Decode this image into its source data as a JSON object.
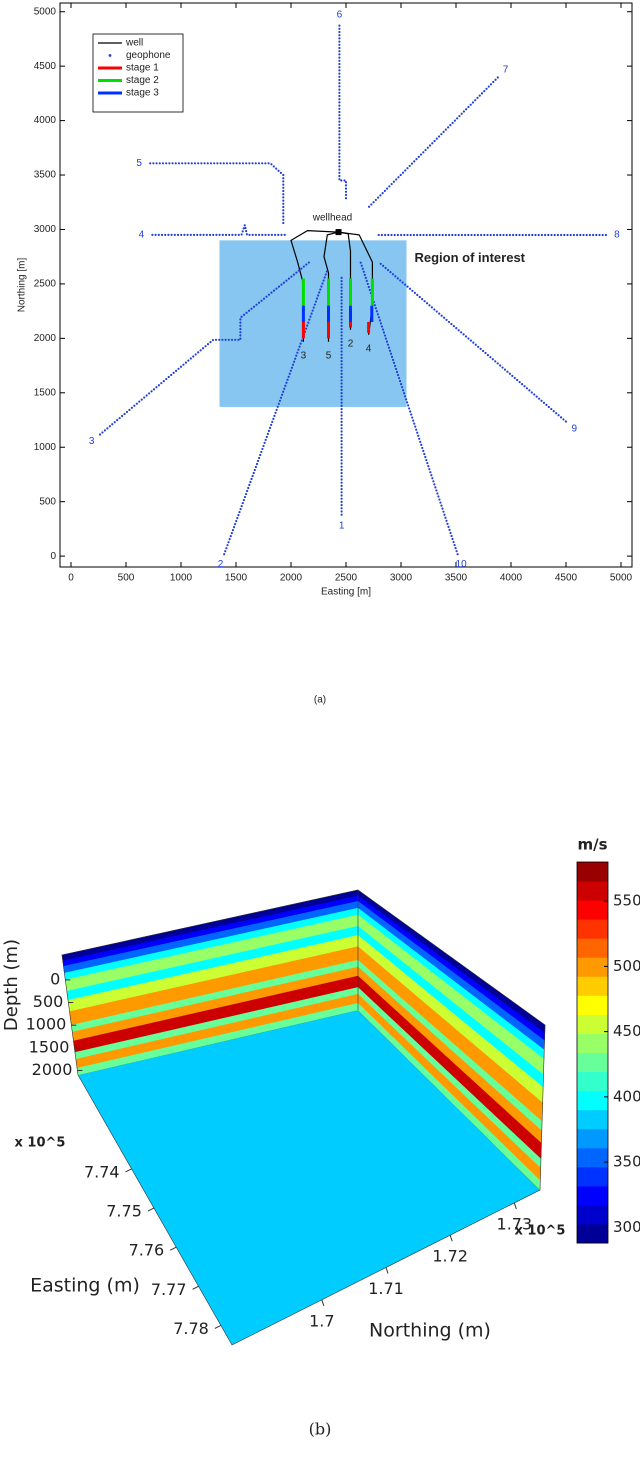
{
  "chart_data": [
    {
      "type": "map",
      "caption": "(a)",
      "xlabel": "Easting [m]",
      "ylabel": "Northing [m]",
      "xlim": [
        -100,
        5100
      ],
      "ylim": [
        -100,
        5080
      ],
      "xticks": [
        0,
        500,
        1000,
        1500,
        2000,
        2500,
        3000,
        3500,
        4000,
        4500,
        5000
      ],
      "yticks": [
        0,
        500,
        1000,
        1500,
        2000,
        2500,
        3000,
        3500,
        4000,
        4500,
        5000
      ],
      "legend": "upper left",
      "region": {
        "label": "Region of interest",
        "color": "#87c6f0",
        "x": [
          1350,
          3050
        ],
        "y": [
          1370,
          2900
        ]
      },
      "wellhead": {
        "label": "wellhead",
        "x": 2432,
        "y": 2976
      },
      "series": [
        {
          "name": "well",
          "color": "#000000",
          "branches": [
            {
              "label": "3",
              "x": [
                2432,
                2150,
                2000,
                2060,
                2113,
                2113
              ],
              "y": [
                2976,
                2990,
                2900,
                2700,
                2500,
                1969
              ]
            },
            {
              "label": "5",
              "x": [
                2432,
                2330,
                2300,
                2341,
                2341
              ],
              "y": [
                2976,
                2950,
                2750,
                2600,
                1969
              ]
            },
            {
              "label": "2",
              "x": [
                2432,
                2520,
                2541,
                2541
              ],
              "y": [
                2976,
                2960,
                2800,
                2079
              ]
            },
            {
              "label": "4",
              "x": [
                2432,
                2620,
                2740,
                2740,
                2705
              ],
              "y": [
                2976,
                2950,
                2700,
                2300,
                2033
              ]
            }
          ]
        },
        {
          "name": "geophone",
          "color": "#1f3fd6",
          "lines": [
            {
              "label": "1",
              "x": [
                2460,
                2460
              ],
              "y": [
                380,
                2580
              ]
            },
            {
              "label": "2",
              "x": [
                1393,
                2331
              ],
              "y": [
                18,
                2628
              ]
            },
            {
              "label": "3",
              "x": [
                264,
                1293,
                1540,
                1540,
                2167
              ],
              "y": [
                1117,
                1987,
                1987,
                2190,
                2700
              ]
            },
            {
              "label": "4",
              "x": [
                740,
                1550,
                1580,
                1600,
                1950
              ],
              "y": [
                2950,
                2950,
                3040,
                2950,
                2950
              ]
            },
            {
              "label": "5",
              "x": [
                720,
                1812,
                1930,
                1930
              ],
              "y": [
                3608,
                3608,
                3500,
                3040
              ]
            },
            {
              "label": "6",
              "x": [
                2440,
                2440,
                2500,
                2500
              ],
              "y": [
                4872,
                3450,
                3450,
                3270
              ]
            },
            {
              "label": "7",
              "x": [
                3880,
                2705
              ],
              "y": [
                4396,
                3205
              ]
            },
            {
              "label": "8",
              "x": [
                4863,
                2796
              ],
              "y": [
                2949,
                2949
              ]
            },
            {
              "label": "9",
              "x": [
                4499,
                2796
              ],
              "y": [
                1236,
                2701
              ]
            },
            {
              "label": "10",
              "x": [
                3515,
                2632
              ],
              "y": [
                18,
                2701
              ]
            }
          ]
        },
        {
          "name": "stage 1",
          "color": "#ff0000",
          "x": [
            2113,
            2113,
            null,
            2341,
            2341,
            null,
            2541,
            2541,
            null,
            2705,
            2705
          ],
          "y": [
            2000,
            2150,
            null,
            2000,
            2150,
            null,
            2100,
            2150,
            null,
            2050,
            2150
          ]
        },
        {
          "name": "stage 2",
          "color": "#00e000",
          "x": [
            2113,
            2113,
            null,
            2341,
            2341,
            null,
            2541,
            2541,
            null,
            2740,
            2740
          ],
          "y": [
            2300,
            2550,
            null,
            2300,
            2550,
            null,
            2300,
            2550,
            null,
            2300,
            2550
          ]
        },
        {
          "name": "stage 3",
          "color": "#0030ff",
          "x": [
            2113,
            2113,
            null,
            2341,
            2341,
            null,
            2541,
            2541,
            null,
            2735,
            2735
          ],
          "y": [
            2150,
            2300,
            null,
            2150,
            2300,
            null,
            2150,
            2300,
            null,
            2150,
            2300
          ]
        }
      ]
    },
    {
      "type": "volume",
      "caption": "(b)",
      "xlabel": "Easting (m)",
      "ylabel": "Northing (m)",
      "zlabel": "Depth (m)",
      "xscale_label": "x 10^5",
      "yscale_label": "x 10^5",
      "xlim": [
        7.716,
        7.785
      ],
      "xticks": [
        7.74,
        7.75,
        7.76,
        7.77,
        7.78
      ],
      "ylim": [
        1.686,
        1.734
      ],
      "yticks": [
        1.7,
        1.71,
        1.72,
        1.73
      ],
      "zlim": [
        -550,
        2100
      ],
      "zticks": [
        0,
        500,
        1000,
        1500,
        2000
      ],
      "colorbar": {
        "title": "m/s",
        "clim": [
          2880,
          5800
        ],
        "ticks": [
          3000,
          3500,
          4000,
          4500,
          5000,
          5500
        ],
        "colormap": "jet",
        "levels": 20
      },
      "layers": {
        "depth": [
          -550,
          -420,
          -300,
          -150,
          0,
          250,
          450,
          700,
          1000,
          1150,
          1350,
          1600,
          1750,
          1950,
          2100
        ],
        "values": [
          2950,
          3250,
          3600,
          4000,
          4350,
          4000,
          4500,
          4950,
          4300,
          5000,
          5650,
          4300,
          5000,
          4250
        ]
      },
      "floor_value": 3900
    }
  ]
}
